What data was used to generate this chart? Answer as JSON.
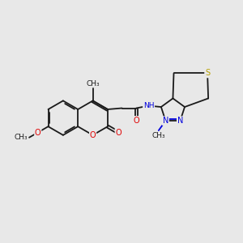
{
  "bg_color": "#e8e8e8",
  "bond_color": "#1a1a1a",
  "bond_width": 1.3,
  "dbo": 0.055,
  "atom_colors": {
    "O": "#e00000",
    "N": "#0000dd",
    "S": "#b8a000",
    "C": "#1a1a1a"
  },
  "fs": 7.0,
  "fs_small": 6.5,
  "figsize": [
    3.0,
    3.0
  ],
  "dpi": 100,
  "xlim": [
    0,
    10
  ],
  "ylim": [
    0,
    10
  ]
}
